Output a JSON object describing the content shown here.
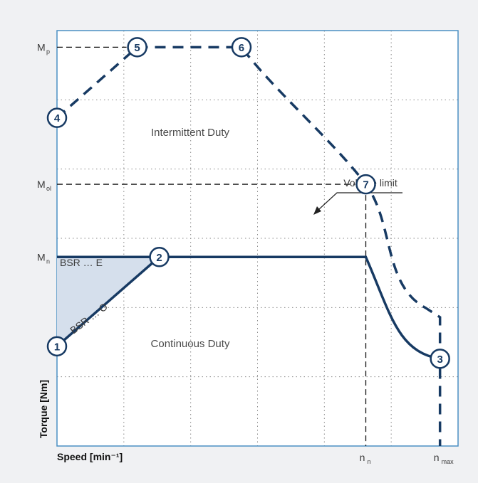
{
  "chart_data": {
    "type": "line",
    "xlabel": "Speed [min⁻¹]",
    "ylabel": "Torque [Nm]",
    "x_ticks": [
      {
        "label": "n",
        "sub": "n",
        "value": 0.77
      },
      {
        "label": "n",
        "sub": "max",
        "value": 0.955
      }
    ],
    "y_ticks": [
      {
        "label": "M",
        "sub": "p",
        "value": 0.96
      },
      {
        "label": "M",
        "sub": "ol",
        "value": 0.63
      },
      {
        "label": "M",
        "sub": "n",
        "value": 0.455
      }
    ],
    "region_labels": [
      "Intermittent Duty",
      "Continuous Duty"
    ],
    "curve_labels": {
      "voltage_limit": "Voltage limit",
      "bsr_e": "BSR … E",
      "bsr_o": "BSR … O"
    },
    "grid": true,
    "xlim": [
      0,
      1
    ],
    "ylim": [
      0,
      1
    ],
    "series": [
      {
        "style": "solid",
        "x": [
          0,
          0.255,
          0.77,
          0.955
        ],
        "y": [
          0.24,
          0.455,
          0.455,
          0.21
        ],
        "smooth_last": true
      },
      {
        "style": "dashed",
        "x": [
          0,
          0.2,
          0.46,
          0.77,
          0.955,
          0.955
        ],
        "y": [
          0.79,
          0.96,
          0.96,
          0.63,
          0.31,
          0
        ]
      },
      {
        "style": "shaded",
        "x": [
          0,
          0.255,
          0
        ],
        "y": [
          0.24,
          0.455,
          0.455
        ]
      }
    ],
    "markers": [
      {
        "label": "1",
        "x": 0,
        "y": 0.24
      },
      {
        "label": "2",
        "x": 0.255,
        "y": 0.455
      },
      {
        "label": "3",
        "x": 0.955,
        "y": 0.21
      },
      {
        "label": "4",
        "x": 0,
        "y": 0.79
      },
      {
        "label": "5",
        "x": 0.2,
        "y": 0.96
      },
      {
        "label": "6",
        "x": 0.46,
        "y": 0.96
      },
      {
        "label": "7",
        "x": 0.77,
        "y": 0.63
      }
    ]
  }
}
